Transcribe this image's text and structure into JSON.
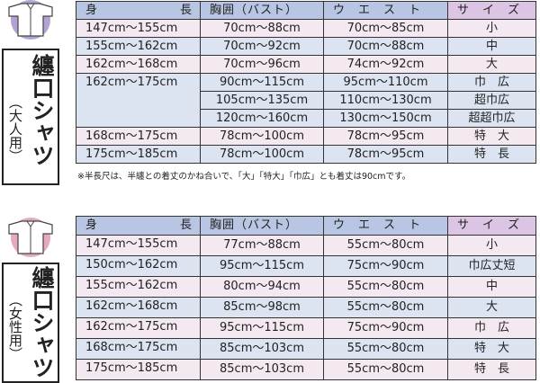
{
  "headers": {
    "height_a": "身",
    "height_b": "長",
    "bust": "胸囲（バスト）",
    "waist": "ウ　エ　ス　ト",
    "size": "サ　イ　ズ"
  },
  "adult": {
    "title": "纏口シャツ",
    "subtitle": "（大人用）",
    "rows": [
      {
        "height": "147cm～155cm",
        "bust": "70cm～88cm",
        "waist": "70cm～85cm",
        "size": "小"
      },
      {
        "height": "155cm～162cm",
        "bust": "70cm～92cm",
        "waist": "70cm～88cm",
        "size": "中"
      },
      {
        "height": "162cm～168cm",
        "bust": "70cm～96cm",
        "waist": "74cm～92cm",
        "size": "大"
      },
      {
        "height": "162cm～175cm",
        "bust": "90cm～115cm",
        "waist": "95cm～110cm",
        "size": "巾　広"
      },
      {
        "height": "",
        "bust": "105cm～135cm",
        "waist": "110cm～130cm",
        "size": "超巾広"
      },
      {
        "height": "",
        "bust": "120cm～160cm",
        "waist": "130cm～150cm",
        "size": "超超巾広"
      },
      {
        "height": "168cm～175cm",
        "bust": "78cm～100cm",
        "waist": "78cm～95cm",
        "size": "特　大"
      },
      {
        "height": "175cm～185cm",
        "bust": "78cm～100cm",
        "waist": "78cm～95cm",
        "size": "特　長"
      }
    ],
    "note": "※半長尺は、半纏との着丈のかね合いで、「大」「特大」「巾広」とも着丈は90cmです。"
  },
  "women": {
    "title": "纏口シャツ",
    "subtitle": "（女性用）",
    "rows": [
      {
        "height": "147cm～155cm",
        "bust": "77cm～88cm",
        "waist": "55cm～80cm",
        "size": "小"
      },
      {
        "height": "150cm～162cm",
        "bust": "95cm～115cm",
        "waist": "75cm～90cm",
        "size": "巾広丈短"
      },
      {
        "height": "155cm～162cm",
        "bust": "80cm～94cm",
        "waist": "55cm～80cm",
        "size": "中"
      },
      {
        "height": "162cm～168cm",
        "bust": "85cm～98cm",
        "waist": "55cm～80cm",
        "size": "大"
      },
      {
        "height": "162cm～175cm",
        "bust": "95cm～115cm",
        "waist": "75cm～90cm",
        "size": "巾　広"
      },
      {
        "height": "168cm～175cm",
        "bust": "85cm～103cm",
        "waist": "55cm～80cm",
        "size": "特　大"
      },
      {
        "height": "175cm～185cm",
        "bust": "85cm～103cm",
        "waist": "55cm～80cm",
        "size": "特　長"
      }
    ]
  },
  "colors": {
    "adult_icon": "#b3a3d3",
    "women_icon": "#e7a9c1",
    "header": "#b8c6e4",
    "size_header": "#dcc4e4",
    "row_pink": "#f4e9f1",
    "row_blue": "#dce3f1"
  }
}
